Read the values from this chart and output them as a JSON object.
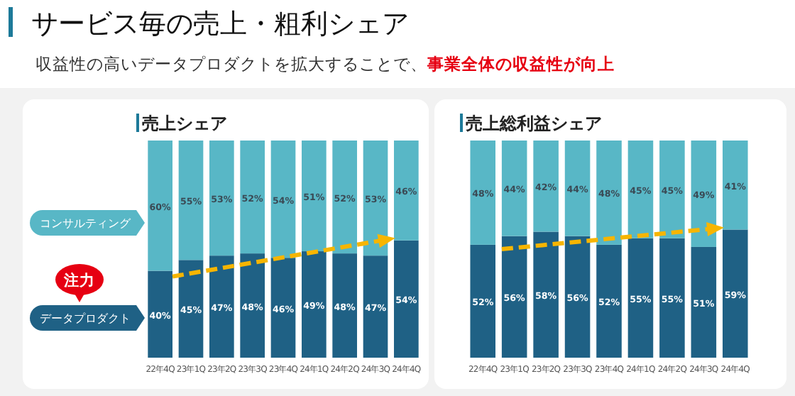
{
  "chart_data": [
    {
      "type": "other",
      "title": "サービス毎の売上・粗利シェア",
      "subtitle": "収益性の高いデータプロダクトを拡大することで、**事業全体の収益性が向上**"
    },
    {
      "type": "bar",
      "stacked": true,
      "title": "売上シェア",
      "categories": [
        "22年4Q",
        "23年1Q",
        "23年2Q",
        "23年3Q",
        "23年4Q",
        "24年1Q",
        "24年2Q",
        "24年3Q",
        "24年4Q"
      ],
      "ylim": [
        0,
        100
      ],
      "tick_labels": "x",
      "legend": "left",
      "annotations": [
        "注力"
      ],
      "series": [
        {
          "name": "データプロダクト",
          "color": "#1f6185",
          "values": [
            40,
            45,
            47,
            48,
            46,
            49,
            48,
            47,
            54
          ],
          "value_labels": [
            "40%",
            "45%",
            "47%",
            "48%",
            "46%",
            "49%",
            "48%",
            "47%",
            "54%"
          ]
        },
        {
          "name": "コンサルティング",
          "color": "#58b7c6",
          "values": [
            60,
            55,
            53,
            52,
            54,
            51,
            52,
            53,
            46
          ],
          "value_labels": [
            "60%",
            "55%",
            "53%",
            "52%",
            "54%",
            "51%",
            "52%",
            "53%",
            "46%"
          ]
        }
      ]
    },
    {
      "type": "bar",
      "stacked": true,
      "title": "売上総利益シェア",
      "categories": [
        "22年4Q",
        "23年1Q",
        "23年2Q",
        "23年3Q",
        "23年4Q",
        "24年1Q",
        "24年2Q",
        "24年3Q",
        "24年4Q"
      ],
      "ylim": [
        0,
        100
      ],
      "tick_labels": "x",
      "series": [
        {
          "color": "#1f6185",
          "values": [
            52,
            56,
            58,
            56,
            52,
            55,
            55,
            51,
            59
          ],
          "value_labels": [
            "52%",
            "56%",
            "58%",
            "56%",
            "52%",
            "55%",
            "55%",
            "51%",
            "59%"
          ]
        },
        {
          "color": "#58b7c6",
          "values": [
            48,
            44,
            42,
            44,
            48,
            45,
            45,
            49,
            41
          ],
          "value_labels": [
            "48%",
            "44%",
            "42%",
            "44%",
            "48%",
            "45%",
            "45%",
            "49%",
            "41%"
          ]
        }
      ]
    }
  ]
}
